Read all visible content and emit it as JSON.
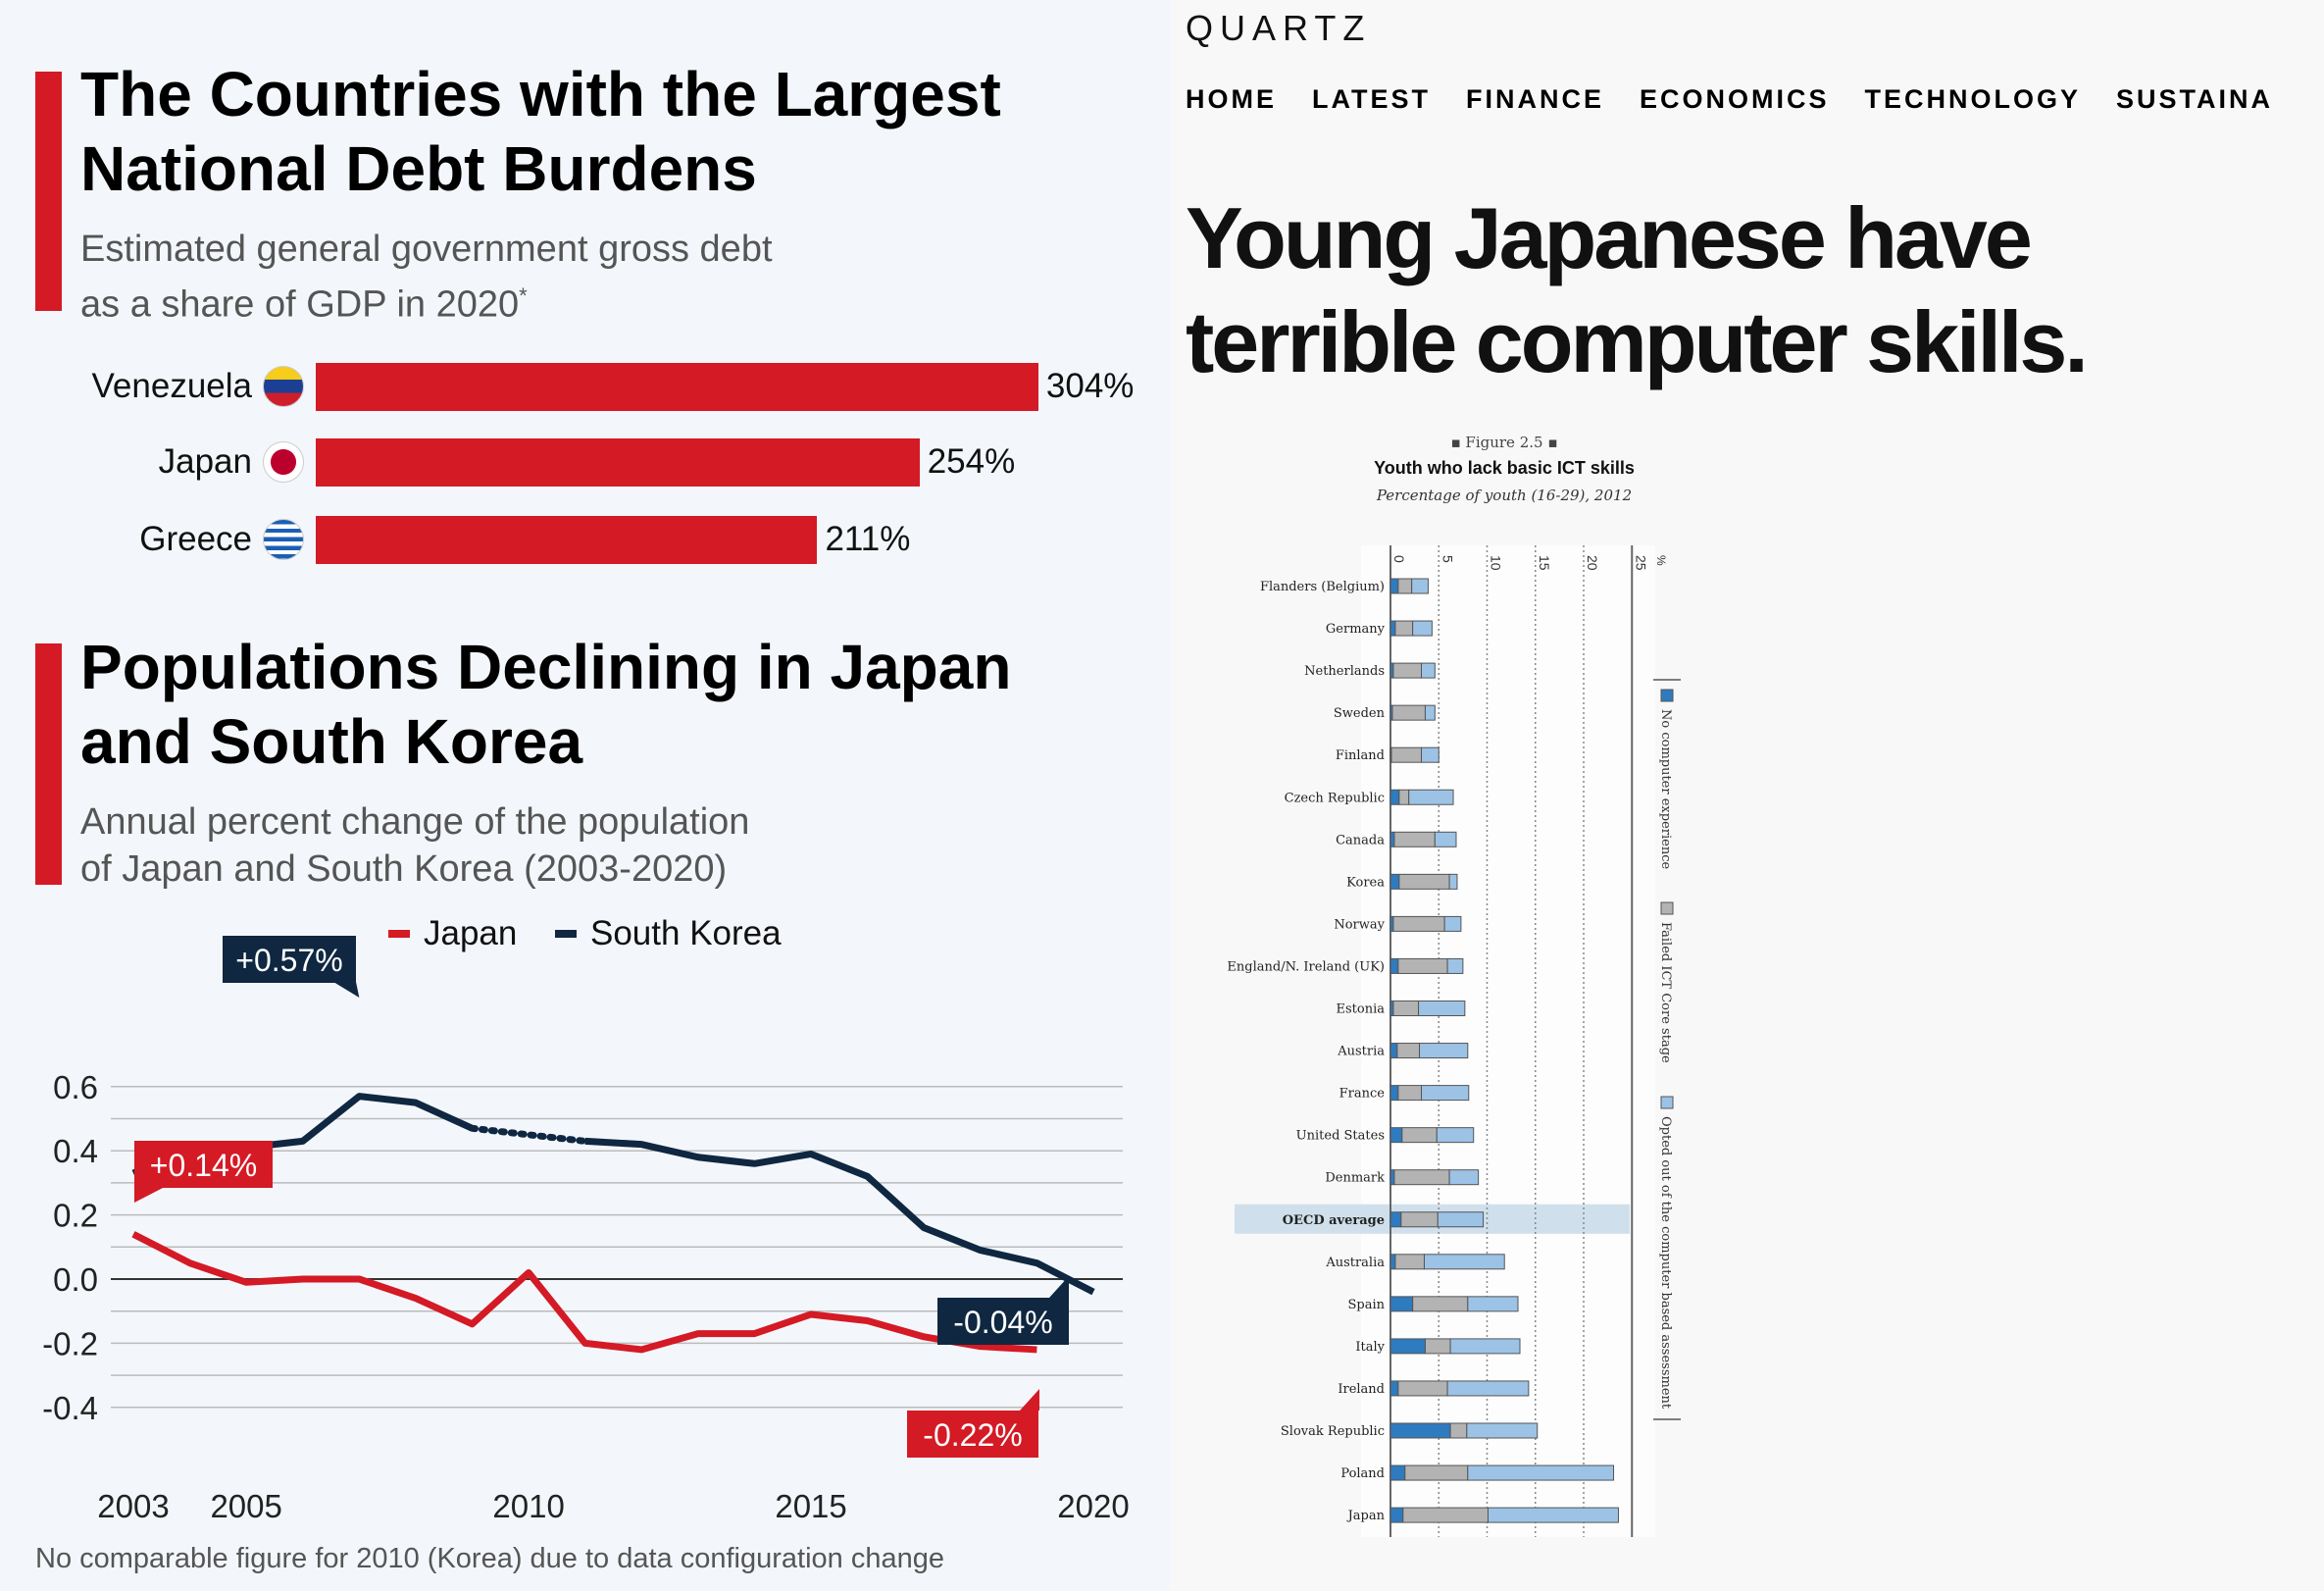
{
  "debt": {
    "title_line1": "The Countries with the Largest",
    "title_line2": "National Debt Burdens",
    "subtitle_line1": "Estimated general government gross debt",
    "subtitle_line2": "as a share of GDP in 2020",
    "footnote_mark": "*",
    "chart_data": {
      "type": "bar",
      "categories": [
        "Venezuela",
        "Japan",
        "Greece"
      ],
      "values": [
        304,
        254,
        211
      ],
      "labels": [
        "304%",
        "254%",
        "211%"
      ],
      "unit": "%"
    }
  },
  "population": {
    "title_line1": "Populations Declining in Japan",
    "title_line2": "and South Korea",
    "subtitle_line1": "Annual percent change of the population",
    "subtitle_line2": "of Japan and South Korea (2003-2020)",
    "note": "No comparable figure for 2010 (Korea) due to data configuration change",
    "annotations": {
      "korea_peak": "+0.57%",
      "japan_start": "+0.14%",
      "korea_end": "-0.04%",
      "japan_end": "-0.22%"
    },
    "colors": {
      "japan": "#d41a25",
      "korea": "#0f2741"
    },
    "chart_data": {
      "type": "line",
      "x": [
        2003,
        2004,
        2005,
        2006,
        2007,
        2008,
        2009,
        2010,
        2011,
        2012,
        2013,
        2014,
        2015,
        2016,
        2017,
        2018,
        2019,
        2020
      ],
      "series": [
        {
          "name": "Japan",
          "values": [
            0.14,
            0.05,
            -0.01,
            0.0,
            0.0,
            -0.06,
            -0.14,
            0.02,
            -0.2,
            -0.22,
            -0.17,
            -0.17,
            -0.11,
            -0.13,
            -0.18,
            -0.21,
            -0.22,
            null
          ]
        },
        {
          "name": "South Korea",
          "values": [
            0.33,
            0.41,
            0.41,
            0.43,
            0.57,
            0.55,
            0.47,
            null,
            0.43,
            0.42,
            0.38,
            0.36,
            0.39,
            0.32,
            0.16,
            0.09,
            0.05,
            -0.04
          ]
        }
      ],
      "yticks": [
        "0.6",
        "0.4",
        "0.2",
        "0.0",
        "-0.2",
        "-0.4"
      ],
      "ytick_values": [
        0.6,
        0.4,
        0.2,
        0.0,
        -0.2,
        -0.4
      ],
      "xticks": [
        "2003",
        "2005",
        "2010",
        "2015",
        "2020"
      ],
      "xtick_values": [
        2003,
        2005,
        2010,
        2015,
        2020
      ],
      "ylim": [
        -0.4,
        0.6
      ],
      "grid": true,
      "legend": "top"
    }
  },
  "quartz": {
    "logo": "QUARTZ",
    "nav": [
      "HOME",
      "LATEST",
      "FINANCE",
      "ECONOMICS",
      "TECHNOLOGY",
      "SUSTAINA"
    ],
    "headline_line1": "Young Japanese have",
    "headline_line2": "terrible computer skills."
  },
  "figure": {
    "label": "Figure 2.5",
    "title": "Youth who lack basic ICT skills",
    "subtitle": "Percentage of youth (16-29), 2012",
    "colors": {
      "none": "#2e7bbf",
      "failed": "#b3b3b3",
      "opted": "#9cc3e6",
      "highlight": "#cfe0ec"
    },
    "chart_data": {
      "type": "bar",
      "orientation": "horizontal",
      "stacked": true,
      "xticks": [
        "0",
        "5",
        "10",
        "15",
        "20",
        "25"
      ],
      "xtick_values": [
        0,
        5,
        10,
        15,
        20,
        25
      ],
      "unit": "%",
      "xlim": [
        0,
        25
      ],
      "legend": [
        "No computer experience",
        "Failed ICT Core stage",
        "Opted out of the computer based assessment"
      ],
      "categories": [
        "Flanders (Belgium)",
        "Germany",
        "Netherlands",
        "Sweden",
        "Finland",
        "Czech Republic",
        "Canada",
        "Korea",
        "Norway",
        "England/N. Ireland (UK)",
        "Estonia",
        "Austria",
        "France",
        "United States",
        "Denmark",
        "OECD average",
        "Australia",
        "Spain",
        "Italy",
        "Ireland",
        "Slovak Republic",
        "Poland",
        "Japan"
      ],
      "series": [
        {
          "name": "No computer experience",
          "values": [
            0.8,
            0.5,
            0.3,
            0.2,
            0.1,
            0.9,
            0.4,
            0.9,
            0.3,
            0.8,
            0.3,
            0.7,
            0.8,
            1.2,
            0.4,
            1.1,
            0.5,
            2.3,
            3.6,
            0.8,
            6.2,
            1.5,
            1.3
          ]
        },
        {
          "name": "Failed ICT Core stage",
          "values": [
            1.4,
            1.8,
            2.9,
            3.4,
            3.1,
            1.0,
            4.2,
            5.2,
            5.3,
            5.1,
            2.6,
            2.3,
            2.4,
            3.6,
            5.7,
            3.8,
            3.0,
            5.7,
            2.6,
            5.1,
            1.7,
            6.5,
            8.8
          ]
        },
        {
          "name": "Opted out of the computer based assessment",
          "values": [
            1.7,
            2.0,
            1.4,
            1.0,
            1.8,
            4.6,
            2.2,
            0.8,
            1.7,
            1.6,
            4.8,
            5.0,
            4.9,
            3.8,
            3.0,
            4.7,
            8.3,
            5.2,
            7.2,
            8.4,
            7.3,
            15.1,
            13.5
          ]
        }
      ],
      "highlight": "OECD average"
    }
  }
}
